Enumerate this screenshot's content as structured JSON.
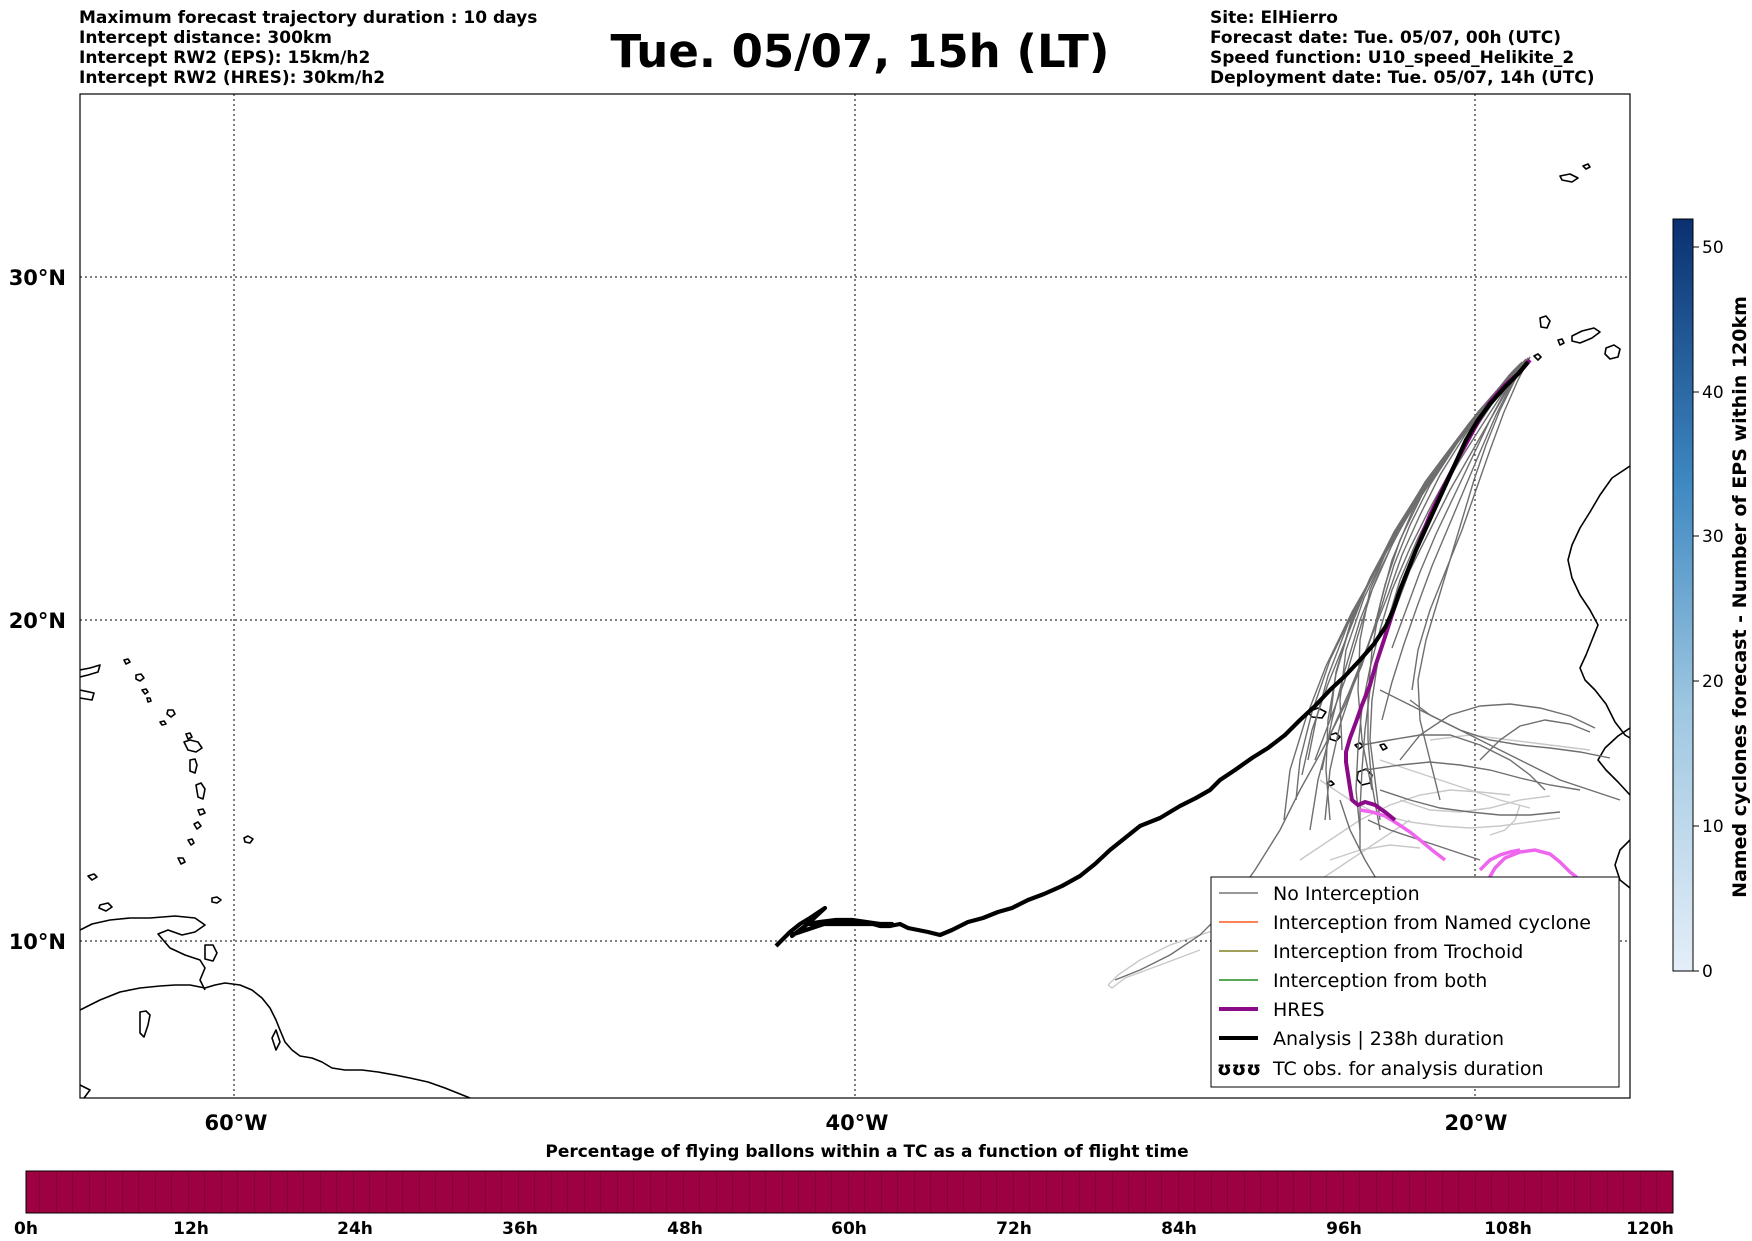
{
  "header": {
    "left_lines": [
      "Maximum forecast trajectory duration : 10 days",
      "Intercept distance: 300km",
      "Intercept RW2 (EPS):  15km/h2",
      "Intercept RW2 (HRES): 30km/h2"
    ],
    "title": "Tue. 05/07, 15h (LT)",
    "right_lines": [
      "Site: ElHierro",
      "Forecast date: Tue. 05/07, 00h (UTC)",
      "Speed function: U10_speed_Helikite_2",
      "Deployment date: Tue. 05/07, 14h (UTC)"
    ]
  },
  "map": {
    "lat_labels": [
      "30°N",
      "20°N",
      "10°N"
    ],
    "lon_labels": [
      "60°W",
      "40°W",
      "20°W"
    ]
  },
  "legend": {
    "items": [
      {
        "label": "No Interception",
        "color": "#777777",
        "style": "thin"
      },
      {
        "label": "Interception from Named cyclone",
        "color": "#ff5a1f",
        "style": "thin"
      },
      {
        "label": "Interception from Trochoid",
        "color": "#808020",
        "style": "thin"
      },
      {
        "label": "Interception from both",
        "color": "#1f8a1f",
        "style": "thin"
      },
      {
        "label": "HRES",
        "color": "#8b0a87",
        "style": "thick"
      },
      {
        "label": "Analysis | 238h duration",
        "color": "#000000",
        "style": "thick"
      },
      {
        "label": "TC obs. for analysis duration",
        "color": "#000000",
        "style": "symbol",
        "symbol": "ʊʊʊ"
      }
    ]
  },
  "colorbar_vertical": {
    "label": "Named cyclones forecast - Number of EPS within 120km",
    "ticks": [
      "0",
      "10",
      "20",
      "30",
      "40",
      "50"
    ],
    "color_low": "#e4eef8",
    "color_high": "#0a3070"
  },
  "colorbar_horizontal": {
    "title": "Percentage of flying ballons within a TC as a function of flight time",
    "ticks": [
      "0h",
      "12h",
      "24h",
      "36h",
      "48h",
      "60h",
      "72h",
      "84h",
      "96h",
      "108h",
      "120h"
    ],
    "fill_color": "#9e0142"
  }
}
